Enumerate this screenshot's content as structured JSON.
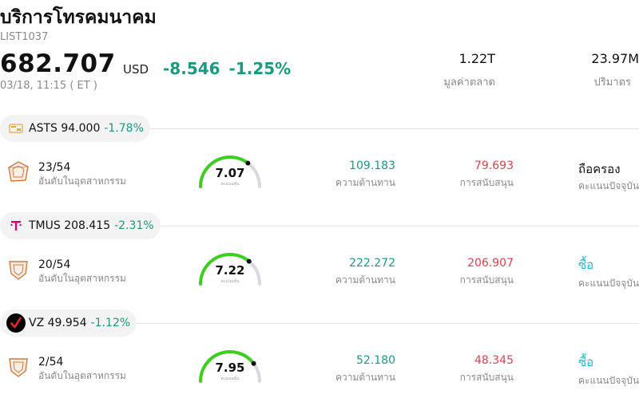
{
  "header": {
    "title": "บริการโทรคมนาคม",
    "code": "LIST1037",
    "price": "682.707",
    "currency": "USD",
    "change": "-8.546",
    "change_pct": "-1.25%",
    "time": "03/18, 11:15  ( ET )"
  },
  "stats": {
    "market_cap_value": "1.22T",
    "market_cap_label": "มูลค่าตลาด",
    "volume_value": "23.97M",
    "volume_label": "ปริมาตร"
  },
  "colors": {
    "up": "#1a9b7f",
    "down": "#e0424d",
    "buy": "#2bb5c4",
    "gauge": "#3ccf1f"
  },
  "stocks": [
    {
      "ticker": "ASTS",
      "price": "94.000",
      "pct": "-1.78%",
      "logo": "asts-logo",
      "rank": "23/54",
      "rank_label": "อันดับในอุตสาหกรรม",
      "score": "7.07",
      "score_label": "คะแนนหุ้น",
      "score_value": 7.07,
      "resistance": "109.183",
      "resistance_label": "ความต้านทาน",
      "support": "79.693",
      "support_label": "การสนับสนุน",
      "rating": "ถือครอง",
      "rating_label": "คะแนนปัจจุบัน",
      "rating_color": "#111111"
    },
    {
      "ticker": "TMUS",
      "price": "208.415",
      "pct": "-2.31%",
      "logo": "tmobile-logo",
      "rank": "20/54",
      "rank_label": "อันดับในอุตสาหกรรม",
      "score": "7.22",
      "score_label": "คะแนนหุ้น",
      "score_value": 7.22,
      "resistance": "222.272",
      "resistance_label": "ความต้านทาน",
      "support": "206.907",
      "support_label": "การสนับสนุน",
      "rating": "ซื้อ",
      "rating_label": "คะแนนปัจจุบัน",
      "rating_color": "#2bb5c4"
    },
    {
      "ticker": "VZ",
      "price": "49.954",
      "pct": "-1.12%",
      "logo": "verizon-logo",
      "rank": "2/54",
      "rank_label": "อันดับในอุตสาหกรรม",
      "score": "7.95",
      "score_label": "คะแนนหุ้น",
      "score_value": 7.95,
      "resistance": "52.180",
      "resistance_label": "ความต้านทาน",
      "support": "48.345",
      "support_label": "การสนับสนุน",
      "rating": "ซื้อ",
      "rating_label": "คะแนนปัจจุบัน",
      "rating_color": "#2bb5c4"
    }
  ]
}
